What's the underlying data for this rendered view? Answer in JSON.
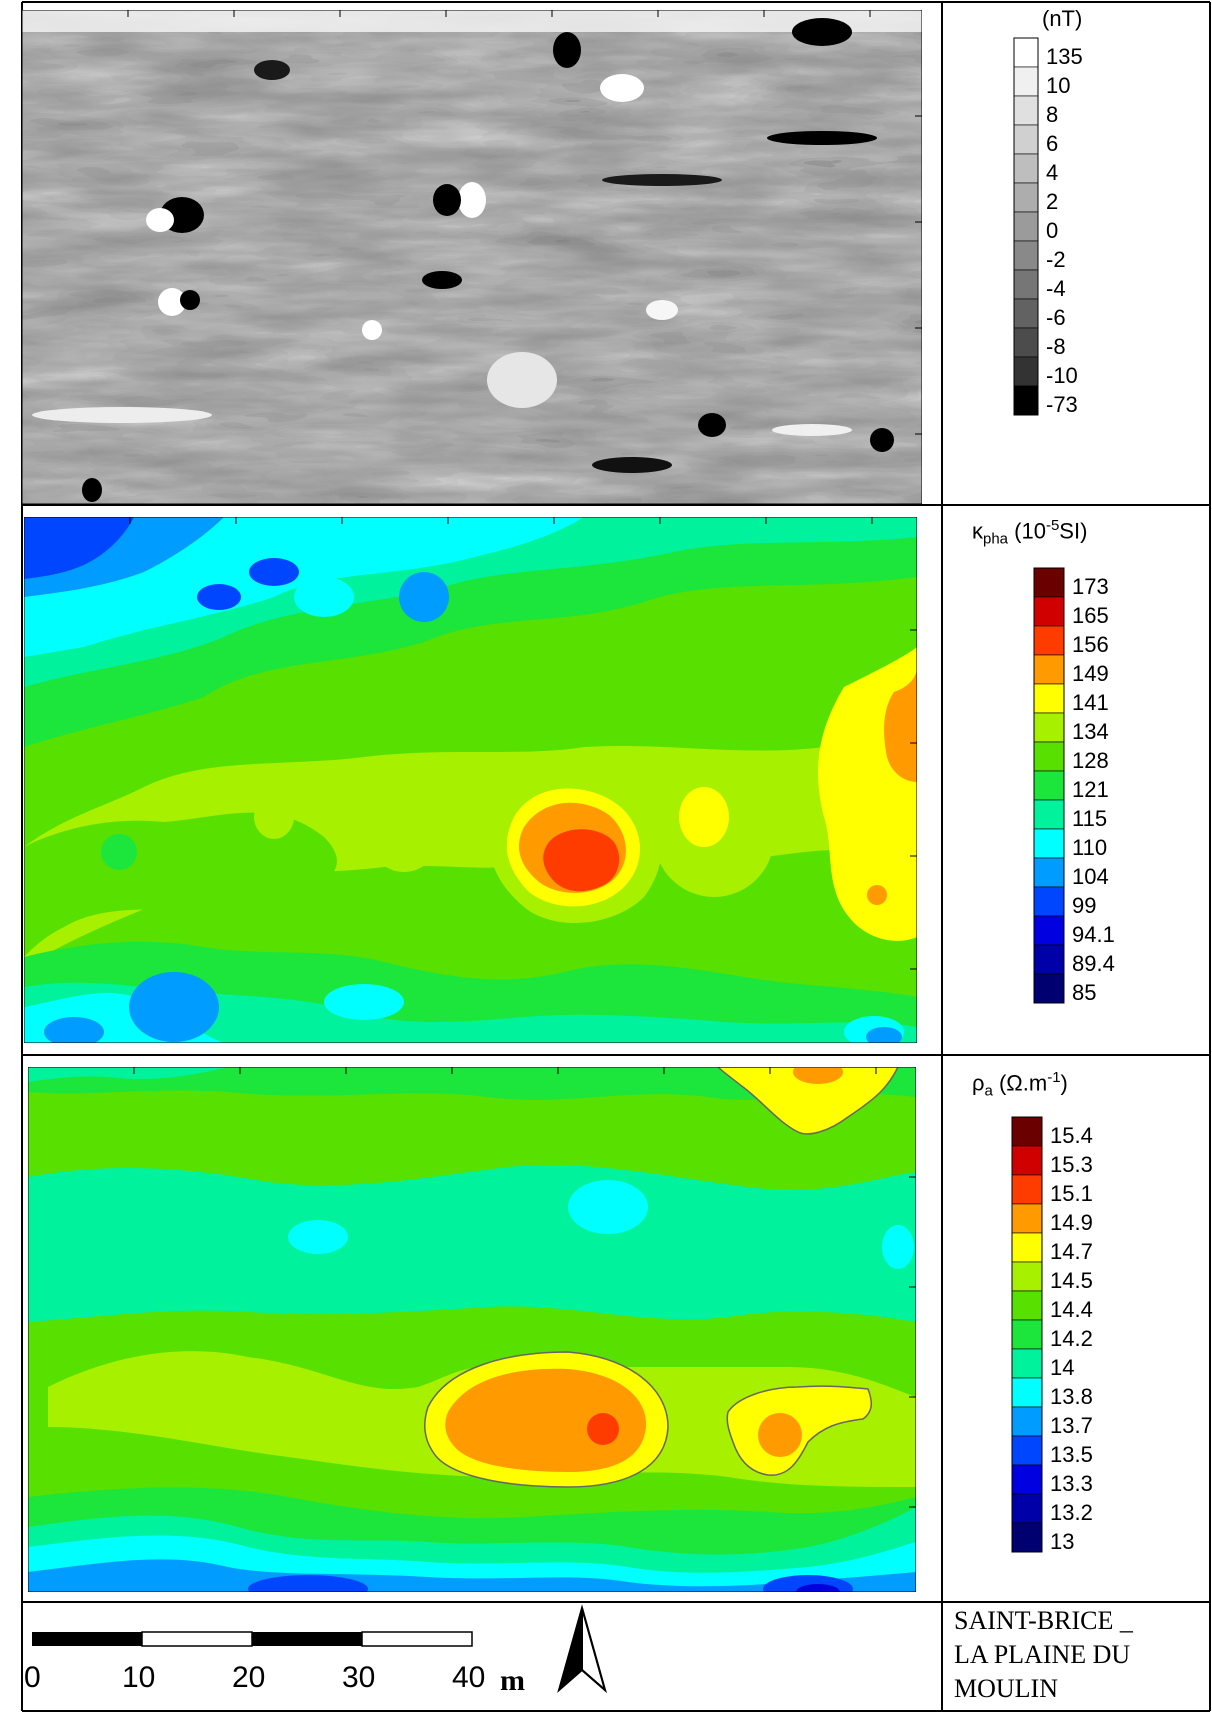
{
  "panels": [
    {
      "id": "magnetic",
      "unit": "(nT)",
      "legend_labels": [
        "135",
        "10",
        "8",
        "6",
        "4",
        "2",
        "0",
        "-2",
        "-4",
        "-6",
        "-8",
        "-10",
        "-73"
      ],
      "legend_colors": [
        "#ffffff",
        "#f0f0f0",
        "#e0e0e0",
        "#d0d0d0",
        "#bebebe",
        "#adadad",
        "#9b9b9b",
        "#898989",
        "#767676",
        "#626262",
        "#4c4c4c",
        "#333333",
        "#000000"
      ]
    },
    {
      "id": "susceptibility",
      "symbol": "κ",
      "subscript": "pha",
      "unit_prefix": "(10",
      "unit_sup": "-5",
      "unit_suffix": "SI)",
      "legend_labels": [
        "173",
        "165",
        "156",
        "149",
        "141",
        "134",
        "128",
        "121",
        "115",
        "110",
        "104",
        "99",
        "94.1",
        "89.4",
        "85"
      ],
      "legend_colors": [
        "#6b0000",
        "#d10000",
        "#ff3c00",
        "#ff9a00",
        "#ffff00",
        "#a6f000",
        "#57e000",
        "#1ce63c",
        "#00f29c",
        "#00ffff",
        "#009cff",
        "#0045ff",
        "#0000e0",
        "#0000a8",
        "#000070"
      ]
    },
    {
      "id": "resistivity",
      "symbol": "ρ",
      "subscript": "a",
      "unit_prefix": "(Ω.m",
      "unit_sup": "-1",
      "unit_suffix": ")",
      "legend_labels": [
        "15.4",
        "15.3",
        "15.1",
        "14.9",
        "14.7",
        "14.5",
        "14.4",
        "14.2",
        "14",
        "13.8",
        "13.7",
        "13.5",
        "13.3",
        "13.2",
        "13"
      ],
      "legend_colors": [
        "#6b0000",
        "#d10000",
        "#ff3c00",
        "#ff9a00",
        "#ffff00",
        "#a6f000",
        "#57e000",
        "#1ce63c",
        "#00f29c",
        "#00ffff",
        "#009cff",
        "#0045ff",
        "#0000e0",
        "#0000a8",
        "#000070"
      ]
    }
  ],
  "scale_bar": {
    "labels": [
      "0",
      "10",
      "20",
      "30",
      "40"
    ],
    "unit": "m"
  },
  "site": {
    "line1": "SAINT-BRICE _",
    "line2": "LA  PLAINE  DU",
    "line3": "MOULIN"
  }
}
